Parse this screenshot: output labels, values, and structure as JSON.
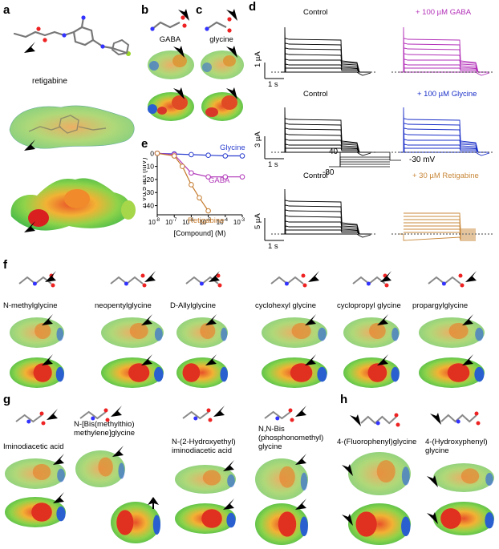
{
  "panels": {
    "a": {
      "letter": "a",
      "name": "retigabine"
    },
    "b": {
      "letter": "b",
      "name": "GABA"
    },
    "c": {
      "letter": "c",
      "name": "glycine"
    },
    "d": {
      "letter": "d",
      "rows": [
        {
          "control": "Control",
          "treatment": "+ 100 µM GABA",
          "treatment_color": "#b22fb8",
          "scale_y": "1 µA",
          "scale_x": "1 s"
        },
        {
          "control": "Control",
          "treatment": "+ 100 µM Glycine",
          "treatment_color": "#1a2fc8",
          "scale_y": "3 µA",
          "scale_x": "1 s"
        },
        {
          "control": "Control",
          "treatment": "+ 30 µM Retigabine",
          "treatment_color": "#c8883a",
          "scale_y": "5 µA",
          "scale_x": "1 s"
        }
      ],
      "protocol": {
        "step_top": "40",
        "step_bottom": "-80",
        "tail": "-30 mV"
      }
    },
    "e": {
      "letter": "e"
    },
    "f": {
      "letter": "f",
      "compounds": [
        "N-methylglycine",
        "neopentylglycine",
        "D-Allylglycine",
        "cyclohexyl glycine",
        "cyclopropyl glycine",
        "propargylglycine"
      ]
    },
    "g": {
      "letter": "g",
      "compounds": [
        {
          "lines": [
            "Iminodiacetic acid"
          ]
        },
        {
          "lines": [
            "N-[Bis(methylthio)",
            "methylene]glycine"
          ]
        },
        {
          "lines": [
            "N-(2-Hydroxyethyl)",
            "iminodiacetic acid"
          ]
        },
        {
          "lines": [
            "N,N-Bis",
            "(phosphonomethyl)",
            "glycine"
          ]
        }
      ]
    },
    "h": {
      "letter": "h",
      "compounds": [
        {
          "lines": [
            "4-(Fluorophenyl)glycine"
          ]
        },
        {
          "lines": [
            "4-(Hydroxyphenyl)",
            "glycine"
          ]
        }
      ]
    }
  },
  "chart_data": {
    "type": "line",
    "xlabel": "[Compound] (M)",
    "ylabel": "Δ V0.5 act (mV)",
    "x_scale": "log",
    "xlim": [
      1e-08,
      0.001
    ],
    "ylim": [
      -47,
      2
    ],
    "x_ticks": [
      {
        "value": 1e-08,
        "base": "10",
        "exp": "-8"
      },
      {
        "value": 1e-07,
        "base": "10",
        "exp": "-7"
      },
      {
        "value": 1e-06,
        "base": "10",
        "exp": "-6"
      },
      {
        "value": 1e-05,
        "base": "10",
        "exp": "-5"
      },
      {
        "value": 0.0001,
        "base": "10",
        "exp": "-4"
      },
      {
        "value": 0.001,
        "base": "10",
        "exp": "-3"
      }
    ],
    "y_ticks": [
      0,
      -10,
      -20,
      -30,
      -40
    ],
    "series": [
      {
        "name": "Glycine",
        "color": "#2b3fcf",
        "x": [
          1e-08,
          1e-07,
          1e-06,
          1e-05,
          0.0001,
          0.001
        ],
        "y": [
          0,
          -0.5,
          -1,
          -1.5,
          -2,
          -2
        ]
      },
      {
        "name": "GABA",
        "color": "#b036b8",
        "x": [
          1e-08,
          1e-07,
          1e-06,
          1e-05,
          0.0001,
          0.001
        ],
        "y": [
          0,
          -1,
          -15,
          -18,
          -18,
          -18
        ]
      },
      {
        "name": "Retigabine",
        "color": "#c47a2c",
        "x": [
          1e-08,
          1e-07,
          3e-07,
          1e-06,
          3e-06,
          1e-05
        ],
        "y": [
          0,
          -2,
          -10,
          -24,
          -34,
          -44
        ]
      }
    ]
  }
}
